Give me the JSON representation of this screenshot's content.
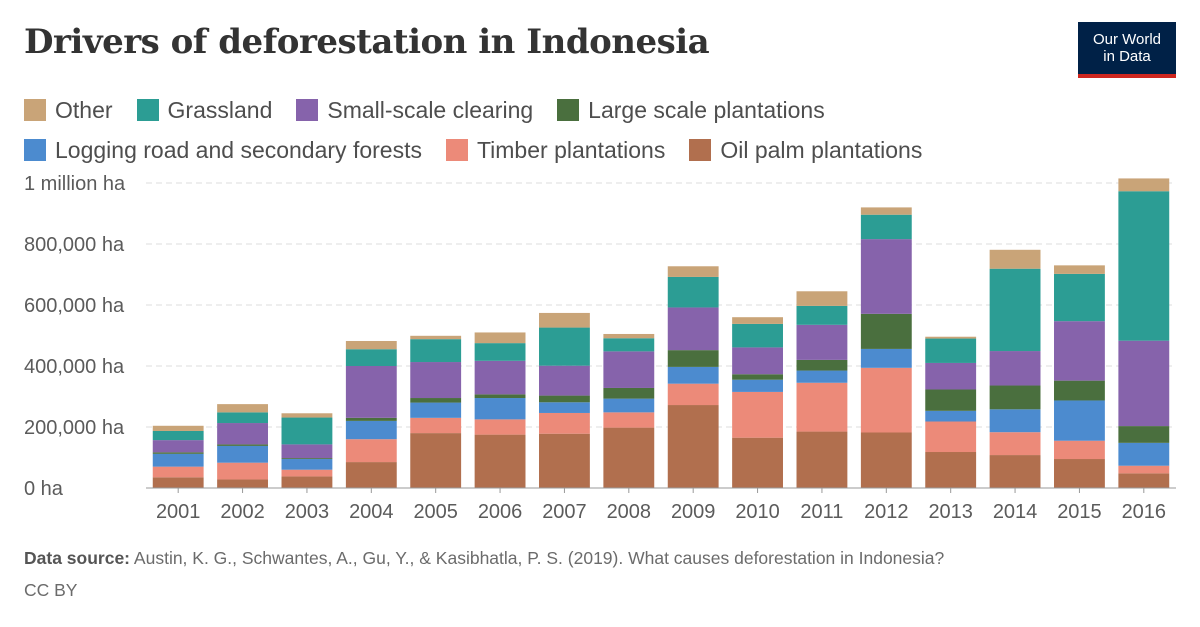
{
  "title": "Drivers of deforestation in Indonesia",
  "logo": {
    "line1": "Our World",
    "line2": "in Data"
  },
  "footer": {
    "source_label": "Data source:",
    "source_text": "Austin, K. G., Schwantes, A., Gu, Y., & Kasibhatla, P. S. (2019). What causes deforestation in Indonesia?",
    "license": "CC BY"
  },
  "legend_rows": [
    [
      "Other",
      "Grassland",
      "Small-scale clearing",
      "Large scale plantations"
    ],
    [
      "Logging road and secondary forests",
      "Timber plantations",
      "Oil palm plantations"
    ]
  ],
  "chart_data": {
    "type": "bar",
    "stacked": true,
    "title": "Drivers of deforestation in Indonesia",
    "xlabel": "",
    "ylabel": "",
    "ylim": [
      0,
      1000000
    ],
    "yticks": [
      {
        "value": 0,
        "label": "0 ha"
      },
      {
        "value": 200000,
        "label": "200,000 ha"
      },
      {
        "value": 400000,
        "label": "400,000 ha"
      },
      {
        "value": 600000,
        "label": "600,000 ha"
      },
      {
        "value": 800000,
        "label": "800,000 ha"
      },
      {
        "value": 1000000,
        "label": "1 million ha"
      }
    ],
    "grid": true,
    "legend_position": "top",
    "categories": [
      "2001",
      "2002",
      "2003",
      "2004",
      "2005",
      "2006",
      "2007",
      "2008",
      "2009",
      "2010",
      "2011",
      "2012",
      "2013",
      "2014",
      "2015",
      "2016"
    ],
    "series": [
      {
        "name": "Oil palm plantations",
        "color": "#b16f4e",
        "values": [
          35000,
          28000,
          38000,
          85000,
          180000,
          175000,
          178000,
          198000,
          272000,
          165000,
          185000,
          182000,
          118000,
          108000,
          95000,
          48000
        ]
      },
      {
        "name": "Timber plantations",
        "color": "#ec8a79",
        "values": [
          35000,
          55000,
          22000,
          75000,
          50000,
          50000,
          68000,
          50000,
          70000,
          150000,
          160000,
          212000,
          100000,
          75000,
          60000,
          25000
        ]
      },
      {
        "name": "Logging road and secondary forests",
        "color": "#4c8bcf",
        "values": [
          42000,
          55000,
          35000,
          60000,
          50000,
          70000,
          35000,
          45000,
          55000,
          40000,
          40000,
          62000,
          35000,
          75000,
          132000,
          75000
        ]
      },
      {
        "name": "Large scale plantations",
        "color": "#4a6f3e",
        "values": [
          5000,
          5000,
          3000,
          10000,
          15000,
          12000,
          22000,
          35000,
          55000,
          18000,
          35000,
          115000,
          70000,
          78000,
          65000,
          55000
        ]
      },
      {
        "name": "Small-scale clearing",
        "color": "#8663ab",
        "values": [
          40000,
          70000,
          45000,
          170000,
          118000,
          110000,
          98000,
          120000,
          140000,
          88000,
          115000,
          245000,
          87000,
          113000,
          195000,
          280000
        ]
      },
      {
        "name": "Grassland",
        "color": "#2c9d94",
        "values": [
          30000,
          35000,
          88000,
          55000,
          75000,
          58000,
          125000,
          43000,
          100000,
          77000,
          62000,
          80000,
          80000,
          270000,
          155000,
          490000
        ]
      },
      {
        "name": "Other",
        "color": "#c9a478",
        "values": [
          17000,
          27000,
          14000,
          27000,
          11000,
          35000,
          48000,
          14000,
          35000,
          22000,
          48000,
          24000,
          6000,
          62000,
          28000,
          42000
        ]
      }
    ]
  }
}
